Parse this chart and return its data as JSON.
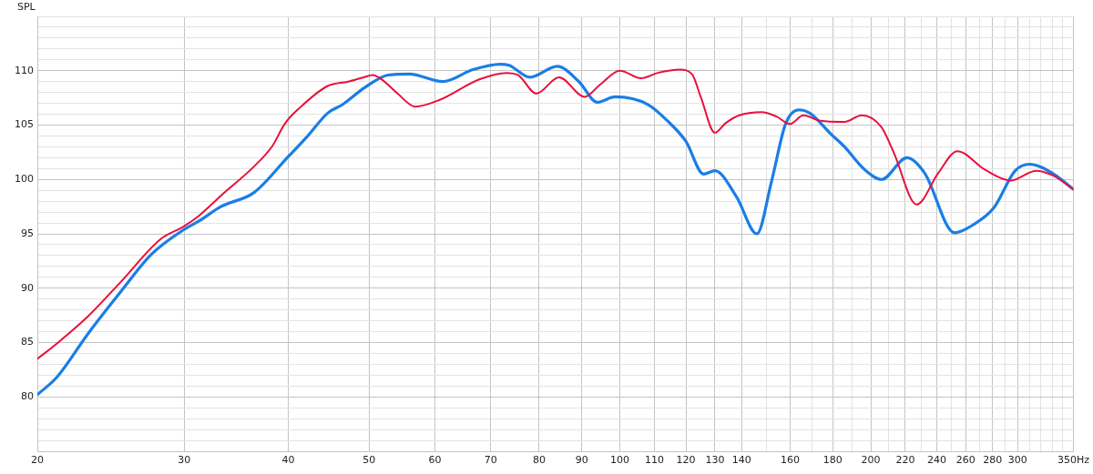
{
  "chart_data": {
    "type": "line",
    "ylabel": "SPL",
    "log": "x",
    "grid": true,
    "legend": false,
    "marker": "none",
    "line_style": "solid",
    "xlim": [
      20,
      350
    ],
    "ylim": [
      75,
      115
    ],
    "xticks": [
      20,
      30,
      40,
      50,
      60,
      70,
      80,
      90,
      100,
      110,
      120,
      130,
      140,
      {
        "value": 150,
        "label": null
      },
      160,
      {
        "value": 170,
        "label": null
      },
      180,
      {
        "value": 190,
        "label": null
      },
      200,
      {
        "value": 210,
        "label": null
      },
      220,
      {
        "value": 230,
        "label": null
      },
      240,
      {
        "value": 250,
        "label": null
      },
      260,
      {
        "value": 270,
        "label": null
      },
      280,
      {
        "value": 290,
        "label": null
      },
      300,
      {
        "value": 310,
        "label": null
      },
      {
        "value": 320,
        "label": null
      },
      {
        "value": 330,
        "label": null
      },
      {
        "value": 340,
        "label": null
      },
      {
        "value": 350,
        "label": "350Hz"
      }
    ],
    "yticks": [
      {
        "value": 75,
        "label": null
      },
      {
        "value": 76,
        "label": null
      },
      {
        "value": 77,
        "label": null
      },
      {
        "value": 78,
        "label": null
      },
      {
        "value": 79,
        "label": null
      },
      80,
      {
        "value": 81,
        "label": null
      },
      {
        "value": 82,
        "label": null
      },
      {
        "value": 83,
        "label": null
      },
      {
        "value": 84,
        "label": null
      },
      85,
      {
        "value": 86,
        "label": null
      },
      {
        "value": 87,
        "label": null
      },
      {
        "value": 88,
        "label": null
      },
      {
        "value": 89,
        "label": null
      },
      90,
      {
        "value": 91,
        "label": null
      },
      {
        "value": 92,
        "label": null
      },
      {
        "value": 93,
        "label": null
      },
      {
        "value": 94,
        "label": null
      },
      95,
      {
        "value": 96,
        "label": null
      },
      {
        "value": 97,
        "label": null
      },
      {
        "value": 98,
        "label": null
      },
      {
        "value": 99,
        "label": null
      },
      100,
      {
        "value": 101,
        "label": null
      },
      {
        "value": 102,
        "label": null
      },
      {
        "value": 103,
        "label": null
      },
      {
        "value": 104,
        "label": null
      },
      105,
      {
        "value": 106,
        "label": null
      },
      {
        "value": 107,
        "label": null
      },
      {
        "value": 108,
        "label": null
      },
      {
        "value": 109,
        "label": null
      },
      110,
      {
        "value": 111,
        "label": null
      },
      {
        "value": 112,
        "label": null
      },
      {
        "value": 113,
        "label": null
      },
      {
        "value": 114,
        "label": null
      },
      {
        "value": 115,
        "label": null
      }
    ],
    "series": [
      {
        "color": "#e8103c",
        "x": [
          20,
          21.1,
          23.0,
          25.2,
          28.1,
          30.0,
          31.3,
          33.2,
          36.4,
          38.3,
          39.6,
          41.3,
          44.6,
          47.2,
          49.3,
          50.5,
          51.8,
          54.1,
          56.8,
          60.7,
          67.8,
          73.1,
          75.5,
          79.4,
          84.5,
          90.7,
          94.6,
          100,
          106,
          111,
          118,
          122,
          125,
          130,
          134,
          139,
          148,
          154,
          160,
          166,
          174,
          186,
          195,
          206,
          213,
          227,
          241,
          254,
          274,
          294,
          316,
          330,
          350
        ],
        "values": [
          83.5,
          84.9,
          87.4,
          90.6,
          94.5,
          95.7,
          96.7,
          98.5,
          101.2,
          103.1,
          105.1,
          106.6,
          108.6,
          109.0,
          109.4,
          109.6,
          109.2,
          107.9,
          106.7,
          107.3,
          109.2,
          109.8,
          109.6,
          107.9,
          109.4,
          107.6,
          108.7,
          110.0,
          109.3,
          109.8,
          110.1,
          109.7,
          107.6,
          104.3,
          105.2,
          105.9,
          106.2,
          105.8,
          105.1,
          105.9,
          105.4,
          105.3,
          105.9,
          104.8,
          102.5,
          97.7,
          100.6,
          102.6,
          100.9,
          99.9,
          100.8,
          100.4,
          99.1
        ]
      },
      {
        "color": "#1a7ee6",
        "x": [
          20,
          21.1,
          23.0,
          25.2,
          27.4,
          30.0,
          31.3,
          33.2,
          36.4,
          40.0,
          42.1,
          44.6,
          46.5,
          49.3,
          52.7,
          55.9,
          61.3,
          66.6,
          71.8,
          73.6,
          78.0,
          84.1,
          89.3,
          93.9,
          98.7,
          108,
          114,
          120,
          126,
          130,
          138,
          146,
          152,
          158,
          164,
          169,
          179,
          186,
          196,
          206,
          221,
          232,
          252,
          265,
          281,
          298,
          310,
          330,
          350
        ],
        "values": [
          80.2,
          81.8,
          85.8,
          89.7,
          93.1,
          95.4,
          96.2,
          97.5,
          98.8,
          102.1,
          103.9,
          106.1,
          106.9,
          108.4,
          109.6,
          109.7,
          109.0,
          110.1,
          110.6,
          110.5,
          109.4,
          110.4,
          109.0,
          107.1,
          107.6,
          106.9,
          105.4,
          103.5,
          100.5,
          100.8,
          98.4,
          95.0,
          99.8,
          105.1,
          106.4,
          106.1,
          104.2,
          103.0,
          101.0,
          100.0,
          102.0,
          100.6,
          95.1,
          95.8,
          97.4,
          100.8,
          101.4,
          100.6,
          99.1
        ]
      }
    ]
  }
}
